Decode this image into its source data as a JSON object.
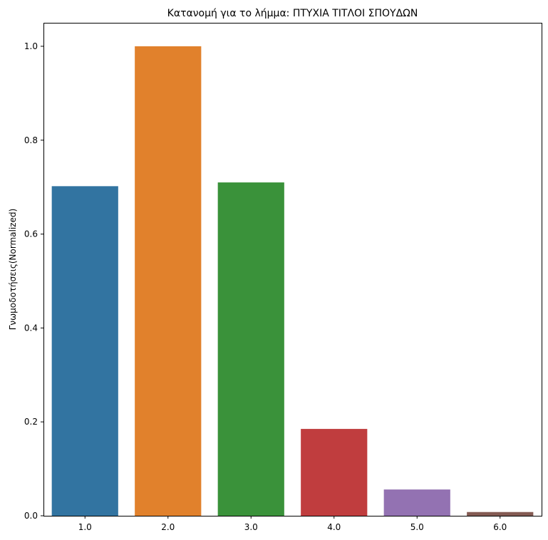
{
  "chart_data": {
    "type": "bar",
    "title": "Κατανομή για το λήμμα: ΠΤΥΧΙΑ ΤΙΤΛΟΙ ΣΠΟΥΔΩΝ",
    "xlabel": "",
    "ylabel": "Γνωμοδοτήσεις(Normalized)",
    "categories": [
      "1.0",
      "2.0",
      "3.0",
      "4.0",
      "5.0",
      "6.0"
    ],
    "values": [
      0.702,
      1.0,
      0.71,
      0.185,
      0.056,
      0.008
    ],
    "colors": [
      "#3274a1",
      "#e1812c",
      "#3a923a",
      "#c03d3e",
      "#9372b2",
      "#845b53"
    ],
    "ylim": [
      0,
      1.05
    ],
    "yticks": [
      "0.0",
      "0.2",
      "0.4",
      "0.6",
      "0.8",
      "1.0"
    ],
    "grid": false,
    "legend": "none"
  }
}
